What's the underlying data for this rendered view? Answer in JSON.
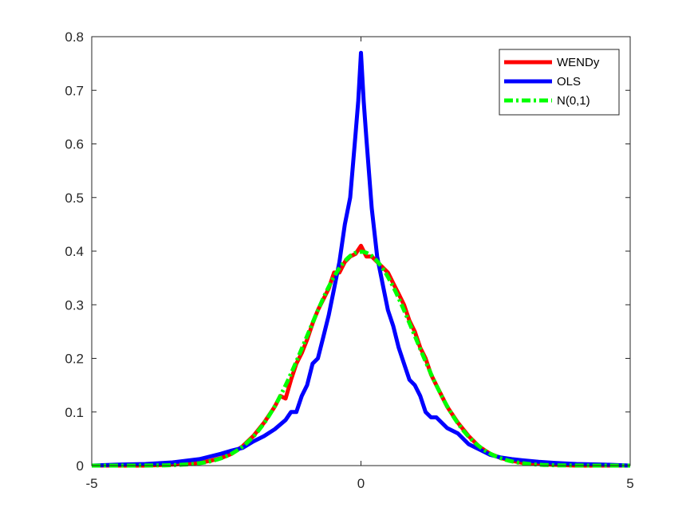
{
  "chart_data": {
    "type": "line",
    "title": "",
    "xlabel": "",
    "ylabel": "",
    "xlim": [
      -5,
      5
    ],
    "ylim": [
      0,
      0.8
    ],
    "x_ticks": [
      -5,
      0,
      5
    ],
    "y_ticks": [
      0,
      0.1,
      0.2,
      0.3,
      0.4,
      0.5,
      0.6,
      0.7,
      0.8
    ],
    "x_tick_labels": [
      "-5",
      "0",
      "5"
    ],
    "y_tick_labels": [
      "0",
      "0.1",
      "0.2",
      "0.3",
      "0.4",
      "0.5",
      "0.6",
      "0.7",
      "0.8"
    ],
    "grid": false,
    "legend": {
      "position": "top-right",
      "entries": [
        "WENDy",
        "OLS",
        "N(0,1)"
      ]
    },
    "series": [
      {
        "name": "WENDy",
        "color": "#ff0000",
        "style": "solid",
        "x": [
          -5,
          -4.5,
          -4,
          -3.5,
          -3,
          -2.8,
          -2.6,
          -2.4,
          -2.2,
          -2,
          -1.8,
          -1.6,
          -1.5,
          -1.4,
          -1.3,
          -1.2,
          -1.1,
          -1,
          -0.9,
          -0.8,
          -0.7,
          -0.6,
          -0.5,
          -0.4,
          -0.3,
          -0.2,
          -0.1,
          0,
          0.1,
          0.2,
          0.3,
          0.4,
          0.5,
          0.6,
          0.7,
          0.8,
          0.9,
          1,
          1.1,
          1.2,
          1.3,
          1.4,
          1.5,
          1.6,
          1.8,
          2,
          2.2,
          2.4,
          2.6,
          2.8,
          3,
          3.5,
          4,
          4.5,
          5
        ],
        "y": [
          0,
          0,
          0,
          0.002,
          0.005,
          0.009,
          0.014,
          0.022,
          0.036,
          0.055,
          0.08,
          0.11,
          0.13,
          0.125,
          0.16,
          0.19,
          0.21,
          0.235,
          0.265,
          0.29,
          0.31,
          0.33,
          0.36,
          0.36,
          0.38,
          0.39,
          0.395,
          0.41,
          0.39,
          0.39,
          0.38,
          0.37,
          0.36,
          0.34,
          0.32,
          0.3,
          0.27,
          0.25,
          0.22,
          0.2,
          0.17,
          0.15,
          0.13,
          0.11,
          0.08,
          0.055,
          0.035,
          0.022,
          0.014,
          0.009,
          0.005,
          0.002,
          0,
          0,
          0
        ]
      },
      {
        "name": "OLS",
        "color": "#0000ff",
        "style": "solid",
        "x": [
          -5,
          -4.5,
          -4,
          -3.5,
          -3,
          -2.6,
          -2.4,
          -2.2,
          -2,
          -1.8,
          -1.6,
          -1.4,
          -1.3,
          -1.2,
          -1.1,
          -1,
          -0.9,
          -0.8,
          -0.7,
          -0.6,
          -0.5,
          -0.4,
          -0.3,
          -0.2,
          -0.1,
          -0.05,
          0,
          0.05,
          0.1,
          0.2,
          0.3,
          0.4,
          0.5,
          0.6,
          0.7,
          0.8,
          0.9,
          1,
          1.1,
          1.2,
          1.3,
          1.4,
          1.6,
          1.8,
          2,
          2.2,
          2.4,
          2.6,
          2.8,
          3,
          3.3,
          3.6,
          4,
          4.5,
          5
        ],
        "y": [
          0,
          0.002,
          0.003,
          0.006,
          0.012,
          0.022,
          0.028,
          0.033,
          0.045,
          0.055,
          0.068,
          0.085,
          0.1,
          0.1,
          0.13,
          0.15,
          0.19,
          0.2,
          0.24,
          0.28,
          0.33,
          0.38,
          0.45,
          0.5,
          0.62,
          0.68,
          0.77,
          0.68,
          0.61,
          0.48,
          0.39,
          0.34,
          0.29,
          0.26,
          0.22,
          0.19,
          0.16,
          0.15,
          0.13,
          0.1,
          0.09,
          0.09,
          0.07,
          0.06,
          0.04,
          0.03,
          0.02,
          0.015,
          0.012,
          0.01,
          0.007,
          0.005,
          0.003,
          0.002,
          0
        ]
      },
      {
        "name": "N(0,1)",
        "color": "#00ff00",
        "style": "dash-dot"
      }
    ]
  }
}
